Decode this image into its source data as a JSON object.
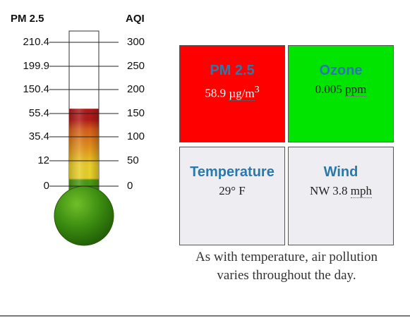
{
  "thermometer": {
    "left_header": "PM 2.5",
    "right_header": "AQI",
    "left_ticks": [
      "210.4",
      "199.9",
      "150.4",
      "55.4",
      "35.4",
      "12",
      "0"
    ],
    "right_ticks": [
      "300",
      "250",
      "200",
      "150",
      "100",
      "50",
      "0"
    ],
    "fill_level_aqi": 160,
    "colors": {
      "top_band": "#b01a1a",
      "orange_band": "#e08a1a",
      "yellow_band": "#e8cf2a",
      "green": "#3f8e12",
      "bulb": "#2f7a0a"
    }
  },
  "tiles": [
    {
      "title": "PM 2.5",
      "value": "58.9 ",
      "unit": "µg/m",
      "unit_sup": "3",
      "bg": "#ff0000"
    },
    {
      "title": "Ozone",
      "value": "0.005 ",
      "unit": "ppm",
      "bg": "#00e400"
    },
    {
      "title": "Temperature",
      "value": "29° F",
      "bg": "#eeeef2"
    },
    {
      "title": "Wind",
      "value": "NW 3.8 ",
      "unit": "mph",
      "bg": "#eeeef2"
    }
  ],
  "caption": "As with temperature, air pollution varies throughout the day."
}
